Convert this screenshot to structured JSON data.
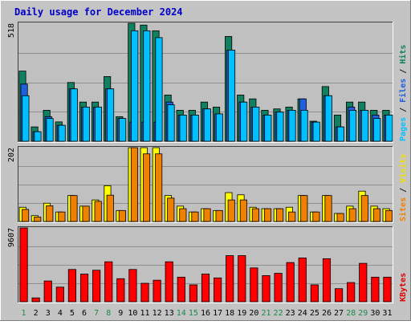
{
  "chart_data": {
    "type": "bar",
    "title": "Daily usage for December 2024",
    "categories": [
      "1",
      "2",
      "3",
      "4",
      "5",
      "6",
      "7",
      "8",
      "9",
      "10",
      "11",
      "12",
      "13",
      "14",
      "15",
      "16",
      "17",
      "18",
      "19",
      "20",
      "21",
      "22",
      "23",
      "24",
      "25",
      "26",
      "27",
      "28",
      "29",
      "30",
      "31"
    ],
    "weekend_days": [
      1,
      7,
      8,
      14,
      15,
      21,
      22,
      28,
      29
    ],
    "panels": [
      {
        "id": "hits",
        "max_label": "518",
        "ymax": 518,
        "grid": true,
        "side_labels": [
          {
            "text": "Pages",
            "color": "#00c0ff"
          },
          {
            "text": " / ",
            "color": "#1a1a1a"
          },
          {
            "text": "Files",
            "color": "#2060e0"
          },
          {
            "text": " / ",
            "color": "#1a1a1a"
          },
          {
            "text": "Hits",
            "color": "#108060"
          }
        ],
        "series": [
          {
            "name": "Hits",
            "color": "#108060",
            "values": [
              308,
              63,
              136,
              85,
              258,
              172,
              172,
              284,
              108,
              518,
              510,
              485,
              203,
              136,
              136,
              172,
              150,
              460,
              203,
              186,
              136,
              142,
              150,
              186,
              88,
              240,
              115,
              172,
              172,
              136,
              136
            ]
          },
          {
            "name": "Files",
            "color": "#2060e0",
            "values": [
              251,
              42,
              108,
              70,
              230,
              150,
              150,
              230,
              100,
              84,
              84,
              84,
              172,
              115,
              115,
              142,
              120,
              400,
              172,
              150,
              115,
              128,
              136,
              186,
              84,
              200,
              63,
              150,
              136,
              115,
              115
            ]
          },
          {
            "name": "Pages",
            "color": "#00c0ff",
            "values": [
              200,
              42,
              100,
              70,
              230,
              150,
              150,
              230,
              100,
              485,
              485,
              455,
              160,
              115,
              115,
              142,
              120,
              400,
              172,
              150,
              115,
              128,
              136,
              136,
              84,
              200,
              63,
              136,
              136,
              100,
              115
            ]
          }
        ]
      },
      {
        "id": "visits",
        "max_label": "202",
        "ymax": 202,
        "grid": true,
        "side_labels": [
          {
            "text": "Sites",
            "color": "#f08000"
          },
          {
            "text": " / ",
            "color": "#1a1a1a"
          },
          {
            "text": "Visits",
            "color": "#f0e000"
          }
        ],
        "series": [
          {
            "name": "Visits",
            "color": "#ffff00",
            "values": [
              39,
              16,
              50,
              26,
              71,
              42,
              59,
              98,
              30,
              202,
              202,
              202,
              71,
              42,
              26,
              35,
              30,
              79,
              73,
              39,
              35,
              35,
              39,
              71,
              26,
              71,
              22,
              42,
              83,
              42,
              35
            ]
          },
          {
            "name": "Sites",
            "color": "#f08000",
            "values": [
              33,
              12,
              43,
              26,
              71,
              42,
              55,
              72,
              30,
              202,
              185,
              185,
              64,
              35,
              26,
              35,
              30,
              59,
              59,
              35,
              35,
              35,
              26,
              71,
              26,
              71,
              22,
              35,
              71,
              35,
              30
            ]
          }
        ]
      },
      {
        "id": "kbytes",
        "max_label": "9607",
        "ymax": 9607,
        "grid": true,
        "side_labels": [
          {
            "text": "KBytes",
            "color": "#e00000"
          }
        ],
        "series": [
          {
            "name": "KBytes",
            "color": "#ff0000",
            "values": [
              9607,
              500,
              2700,
              1900,
              4200,
              3600,
              4100,
              5200,
              3000,
              4200,
              2400,
              2800,
              5200,
              3200,
              2200,
              3600,
              3100,
              6000,
              6000,
              4400,
              3400,
              3700,
              5100,
              5700,
              2200,
              5600,
              1700,
              2500,
              5000,
              3200,
              3200
            ]
          }
        ]
      }
    ]
  }
}
